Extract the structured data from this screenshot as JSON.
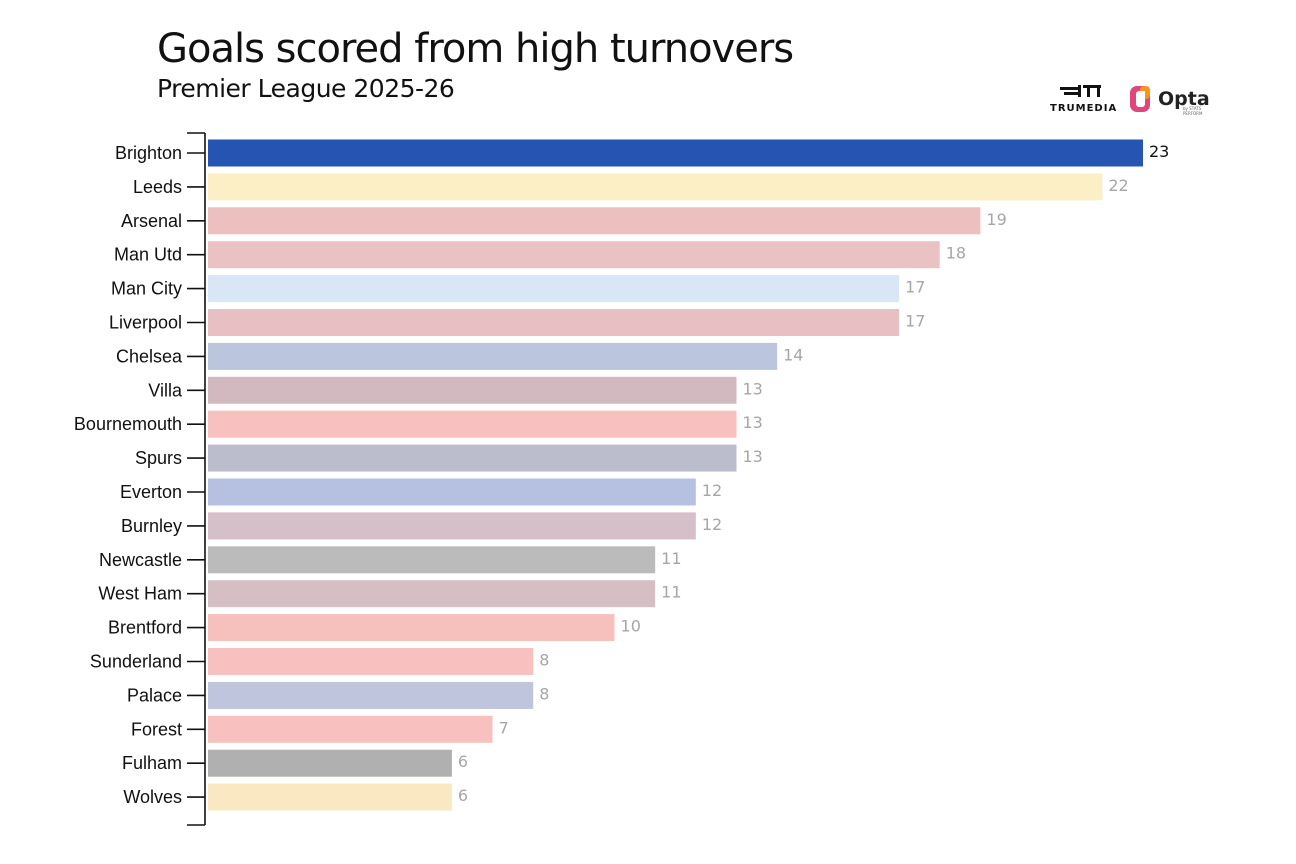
{
  "title": "Goals scored from high turnovers",
  "subtitle": "Premier League 2025-26",
  "logos": {
    "trumedia": "TRUMEDIA",
    "opta": "Opta",
    "opta_sub": "by STATS PERFORM"
  },
  "chart_data": {
    "type": "bar",
    "orientation": "horizontal",
    "title": "Goals scored from high turnovers",
    "subtitle": "Premier League 2025-26",
    "xlabel": "",
    "ylabel": "",
    "xlim": [
      0,
      23
    ],
    "grid": false,
    "categories": [
      "Brighton",
      "Leeds",
      "Arsenal",
      "Man Utd",
      "Man City",
      "Liverpool",
      "Chelsea",
      "Villa",
      "Bournemouth",
      "Spurs",
      "Everton",
      "Burnley",
      "Newcastle",
      "West Ham",
      "Brentford",
      "Sunderland",
      "Palace",
      "Forest",
      "Fulham",
      "Wolves"
    ],
    "values": [
      23,
      22,
      19,
      18,
      17,
      17,
      14,
      13,
      13,
      13,
      12,
      12,
      11,
      11,
      10,
      8,
      8,
      7,
      6,
      6
    ],
    "colors": [
      "#2654b3",
      "#fcefc5",
      "#edc0c0",
      "#eac2c3",
      "#d9e6f5",
      "#e8c0c3",
      "#bbc6de",
      "#d2b9c0",
      "#f8c0bf",
      "#bcbdcc",
      "#b6c1e1",
      "#d5bfc8",
      "#bbbbbb",
      "#d5bfc4",
      "#f6c0bd",
      "#f8c1bf",
      "#bec5dc",
      "#f8c0bf",
      "#b0b0b0",
      "#fae8c3"
    ],
    "value_label_colors": [
      "#111111",
      "#a6a6a6",
      "#a6a6a6",
      "#a6a6a6",
      "#a6a6a6",
      "#a6a6a6",
      "#a6a6a6",
      "#a6a6a6",
      "#a6a6a6",
      "#a6a6a6",
      "#a6a6a6",
      "#a6a6a6",
      "#a6a6a6",
      "#a6a6a6",
      "#a6a6a6",
      "#a6a6a6",
      "#a6a6a6",
      "#a6a6a6",
      "#a6a6a6",
      "#a6a6a6"
    ]
  }
}
